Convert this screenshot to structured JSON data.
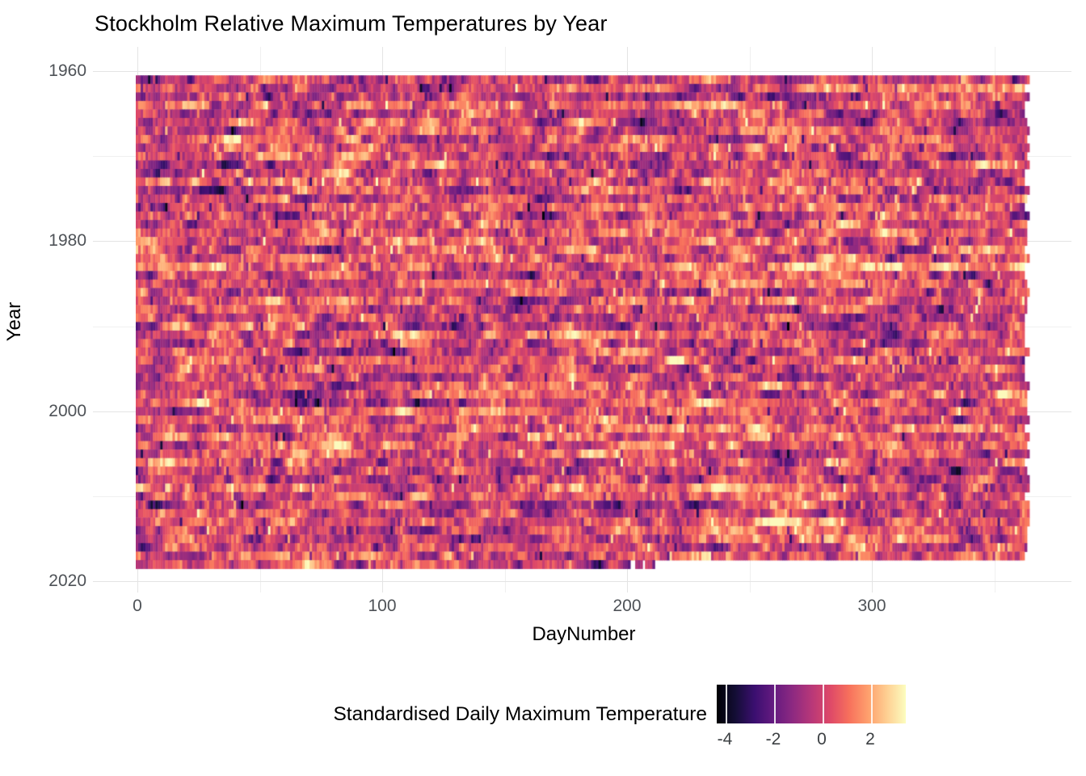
{
  "title": "Stockholm Relative Maximum Temperatures by Year",
  "axes": {
    "x": {
      "title": "DayNumber",
      "tick_labels": [
        "0",
        "100",
        "200",
        "300"
      ],
      "tick_values": [
        0,
        100,
        200,
        300
      ],
      "minor_tick_values": [
        50,
        150,
        250,
        350
      ],
      "domain": [
        0,
        365
      ]
    },
    "y": {
      "title": "Year",
      "tick_labels": [
        "1960",
        "1980",
        "2000",
        "2020"
      ],
      "tick_values": [
        1960,
        1980,
        2000,
        2020
      ],
      "minor_tick_values": [
        1970,
        1990,
        2010
      ],
      "domain": [
        1961,
        2018
      ],
      "direction": "reversed"
    }
  },
  "legend": {
    "title": "Standardised Daily Maximum Temperature",
    "tick_labels": [
      "-4",
      "-2",
      "0",
      "2"
    ],
    "tick_values": [
      -4,
      -2,
      0,
      2
    ],
    "orientation": "horizontal",
    "position": "bottom-right"
  },
  "style": {
    "background": "#ffffff",
    "grid_major": "#e4e4e4",
    "grid_minor": "#f0f0f0",
    "axis_text_color": "#4e5257",
    "title_color": "#000000",
    "colorbar_tick_color": "#ffffff"
  },
  "chart_data": {
    "type": "heatmap",
    "x_field": "DayNumber",
    "y_field": "Year",
    "value_field": "Standardised Daily Maximum Temperature",
    "x_range": [
      0,
      365
    ],
    "year_range": [
      1961,
      2018
    ],
    "value_range": [
      -4.35,
      3.45
    ],
    "grid": "on",
    "last_year_end_day": 211,
    "last_year_missing_days": [
      202,
      203,
      207
    ],
    "colormap": "magma",
    "palette_stops": [
      {
        "t": 0.0,
        "color": "#000004"
      },
      {
        "t": 0.1,
        "color": "#140e36"
      },
      {
        "t": 0.2,
        "color": "#3b0f70"
      },
      {
        "t": 0.3,
        "color": "#641a80"
      },
      {
        "t": 0.4,
        "color": "#8c2981"
      },
      {
        "t": 0.5,
        "color": "#b73779"
      },
      {
        "t": 0.6,
        "color": "#de4968"
      },
      {
        "t": 0.7,
        "color": "#f7705c"
      },
      {
        "t": 0.8,
        "color": "#fe9f6d"
      },
      {
        "t": 0.9,
        "color": "#fecf92"
      },
      {
        "t": 1.0,
        "color": "#fcfdbf"
      }
    ],
    "render": {
      "seed": 1973,
      "ar_phi": 0.72,
      "noise_sd": 0.62,
      "mean": 0.12
    }
  }
}
